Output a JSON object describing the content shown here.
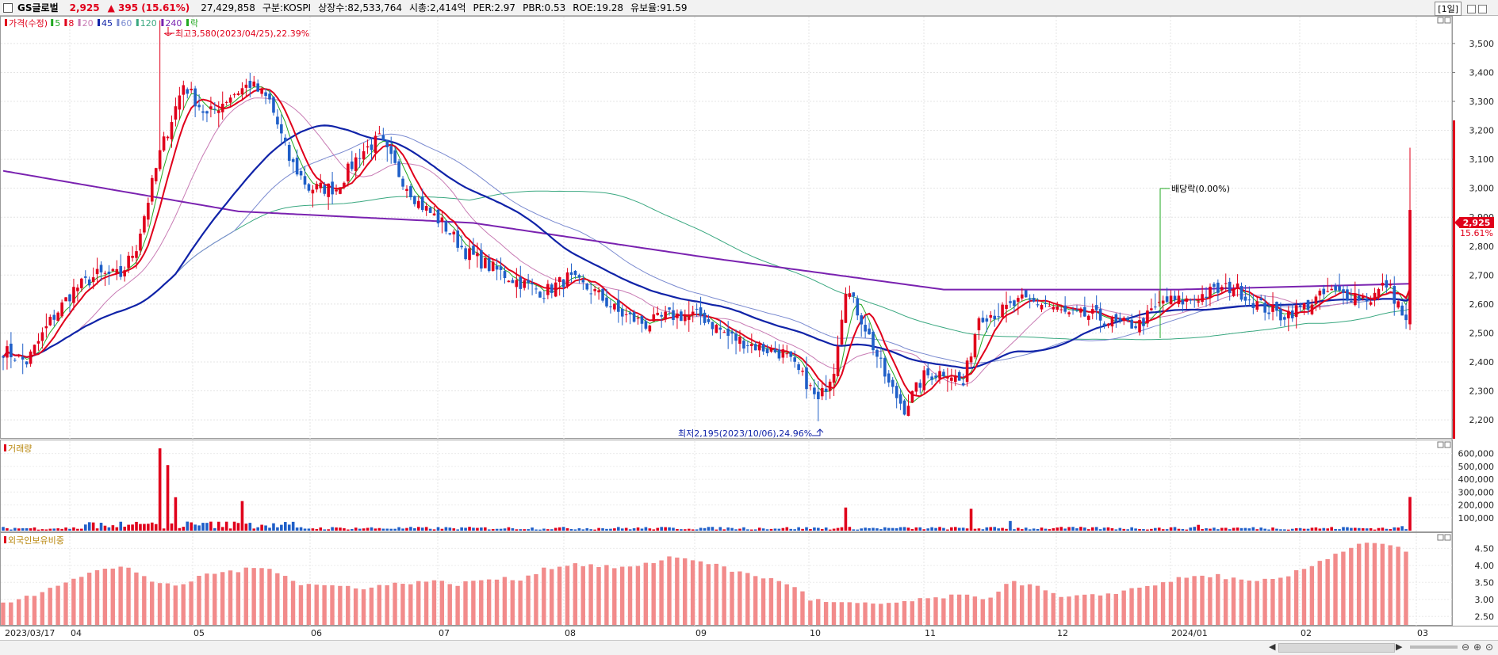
{
  "header": {
    "name": "GS글로벌",
    "price": "2,925",
    "change": "▲ 395",
    "change_pct": "(15.61%)",
    "volume": "27,429,858",
    "market": "구분:KOSPI",
    "shares": "상장수:82,533,764",
    "mcap": "시총:2,414억",
    "per": "PER:2.97",
    "pbr": "PBR:0.53",
    "roe": "ROE:19.28",
    "retention": "유보율:91.59",
    "period": "[1일]"
  },
  "legend": {
    "items": [
      {
        "label": "가격(수정)",
        "color": "#e0001b"
      },
      {
        "label": "5",
        "color": "#22a822"
      },
      {
        "label": "8",
        "color": "#e0001b"
      },
      {
        "label": "20",
        "color": "#c87bb4"
      },
      {
        "label": "45",
        "color": "#1023a8"
      },
      {
        "label": "60",
        "color": "#7a8ad0"
      },
      {
        "label": "120",
        "color": "#3aa880"
      },
      {
        "label": "240",
        "color": "#7a22b0"
      },
      {
        "label": "락",
        "color": "#22a822"
      }
    ]
  },
  "annotations": {
    "high": "최고3,580(2023/04/25),22.39%",
    "low": "최저2,195(2023/10/06),24.96%",
    "dividend": "배당락(0.00%)",
    "price_box": "2,925",
    "price_pct": "15.61%"
  },
  "volume_panel": {
    "title": "거래량"
  },
  "foreign_panel": {
    "title": "외국인보유비중"
  },
  "chart_data": {
    "type": "candlestick",
    "price_axis": {
      "ticks": [
        2200,
        2300,
        2400,
        2500,
        2600,
        2700,
        2800,
        2900,
        3000,
        3100,
        3200,
        3300,
        3400,
        3500
      ],
      "ylim": [
        2140,
        3590
      ]
    },
    "volume_axis": {
      "ticks": [
        "600,000",
        "500,000",
        "400,000",
        "300,000",
        "200,000",
        "100,000"
      ],
      "tick_values": [
        600000,
        500000,
        400000,
        300000,
        200000,
        100000
      ],
      "ymax": 690000
    },
    "foreign_axis": {
      "ticks": [
        "4.50",
        "4.00",
        "3.50",
        "3.00",
        "2.50"
      ],
      "tick_values": [
        4.5,
        4.0,
        3.5,
        3.0,
        2.5
      ],
      "ylim": [
        2.25,
        4.95
      ]
    },
    "x_labels": [
      "2023/03/17",
      "04",
      "05",
      "06",
      "07",
      "08",
      "09",
      "10",
      "11",
      "12",
      "2024/01",
      "02",
      "03"
    ],
    "price_keypoints": [
      [
        0,
        2440
      ],
      [
        6,
        2400
      ],
      [
        12,
        2540
      ],
      [
        18,
        2650
      ],
      [
        24,
        2700
      ],
      [
        30,
        2700
      ],
      [
        34,
        2800
      ],
      [
        40,
        3120
      ],
      [
        46,
        3360
      ],
      [
        52,
        3250
      ],
      [
        58,
        3320
      ],
      [
        63,
        3360
      ],
      [
        68,
        3300
      ],
      [
        73,
        3100
      ],
      [
        78,
        3000
      ],
      [
        85,
        3000
      ],
      [
        91,
        3120
      ],
      [
        96,
        3170
      ],
      [
        101,
        3050
      ],
      [
        106,
        2950
      ],
      [
        112,
        2880
      ],
      [
        118,
        2780
      ],
      [
        124,
        2730
      ],
      [
        131,
        2680
      ],
      [
        138,
        2640
      ],
      [
        144,
        2690
      ],
      [
        151,
        2640
      ],
      [
        157,
        2570
      ],
      [
        164,
        2530
      ],
      [
        170,
        2560
      ],
      [
        178,
        2560
      ],
      [
        185,
        2490
      ],
      [
        193,
        2450
      ],
      [
        199,
        2430
      ],
      [
        205,
        2330
      ],
      [
        208,
        2260
      ],
      [
        212,
        2380
      ],
      [
        215,
        2660
      ],
      [
        220,
        2520
      ],
      [
        226,
        2320
      ],
      [
        230,
        2240
      ],
      [
        235,
        2350
      ],
      [
        241,
        2370
      ],
      [
        245,
        2320
      ],
      [
        249,
        2560
      ],
      [
        254,
        2570
      ],
      [
        260,
        2610
      ],
      [
        266,
        2600
      ],
      [
        272,
        2560
      ],
      [
        278,
        2560
      ],
      [
        284,
        2530
      ],
      [
        290,
        2530
      ],
      [
        296,
        2610
      ],
      [
        302,
        2610
      ],
      [
        308,
        2640
      ],
      [
        314,
        2660
      ],
      [
        320,
        2600
      ],
      [
        326,
        2560
      ],
      [
        332,
        2590
      ],
      [
        338,
        2640
      ],
      [
        344,
        2630
      ],
      [
        349,
        2620
      ],
      [
        353,
        2670
      ],
      [
        356,
        2600
      ],
      [
        358,
        2530
      ],
      [
        359,
        2925
      ]
    ],
    "volume_spikes": [
      [
        40,
        640000
      ],
      [
        42,
        510000
      ],
      [
        44,
        260000
      ],
      [
        61,
        230000
      ],
      [
        215,
        180000
      ],
      [
        247,
        170000
      ],
      [
        257,
        75000
      ],
      [
        305,
        45000
      ],
      [
        342,
        28000
      ],
      [
        357,
        35000
      ],
      [
        359,
        262000
      ]
    ],
    "foreign_keypoints": [
      [
        0,
        2.85
      ],
      [
        8,
        3.15
      ],
      [
        16,
        3.55
      ],
      [
        24,
        3.85
      ],
      [
        32,
        3.95
      ],
      [
        38,
        3.55
      ],
      [
        44,
        3.35
      ],
      [
        52,
        3.75
      ],
      [
        60,
        3.85
      ],
      [
        68,
        3.95
      ],
      [
        76,
        3.45
      ],
      [
        84,
        3.4
      ],
      [
        92,
        3.35
      ],
      [
        100,
        3.45
      ],
      [
        108,
        3.55
      ],
      [
        116,
        3.45
      ],
      [
        124,
        3.6
      ],
      [
        132,
        3.6
      ],
      [
        138,
        3.9
      ],
      [
        146,
        4.05
      ],
      [
        154,
        3.95
      ],
      [
        162,
        3.95
      ],
      [
        170,
        4.25
      ],
      [
        178,
        4.15
      ],
      [
        186,
        3.85
      ],
      [
        194,
        3.65
      ],
      [
        202,
        3.4
      ],
      [
        206,
        3.0
      ],
      [
        212,
        2.9
      ],
      [
        222,
        2.85
      ],
      [
        232,
        2.95
      ],
      [
        242,
        3.1
      ],
      [
        252,
        3.05
      ],
      [
        256,
        3.5
      ],
      [
        262,
        3.45
      ],
      [
        270,
        3.05
      ],
      [
        278,
        3.1
      ],
      [
        286,
        3.25
      ],
      [
        294,
        3.45
      ],
      [
        302,
        3.65
      ],
      [
        310,
        3.7
      ],
      [
        318,
        3.5
      ],
      [
        326,
        3.6
      ],
      [
        334,
        4.0
      ],
      [
        340,
        4.35
      ],
      [
        348,
        4.7
      ],
      [
        354,
        4.6
      ],
      [
        359,
        4.35
      ]
    ]
  }
}
